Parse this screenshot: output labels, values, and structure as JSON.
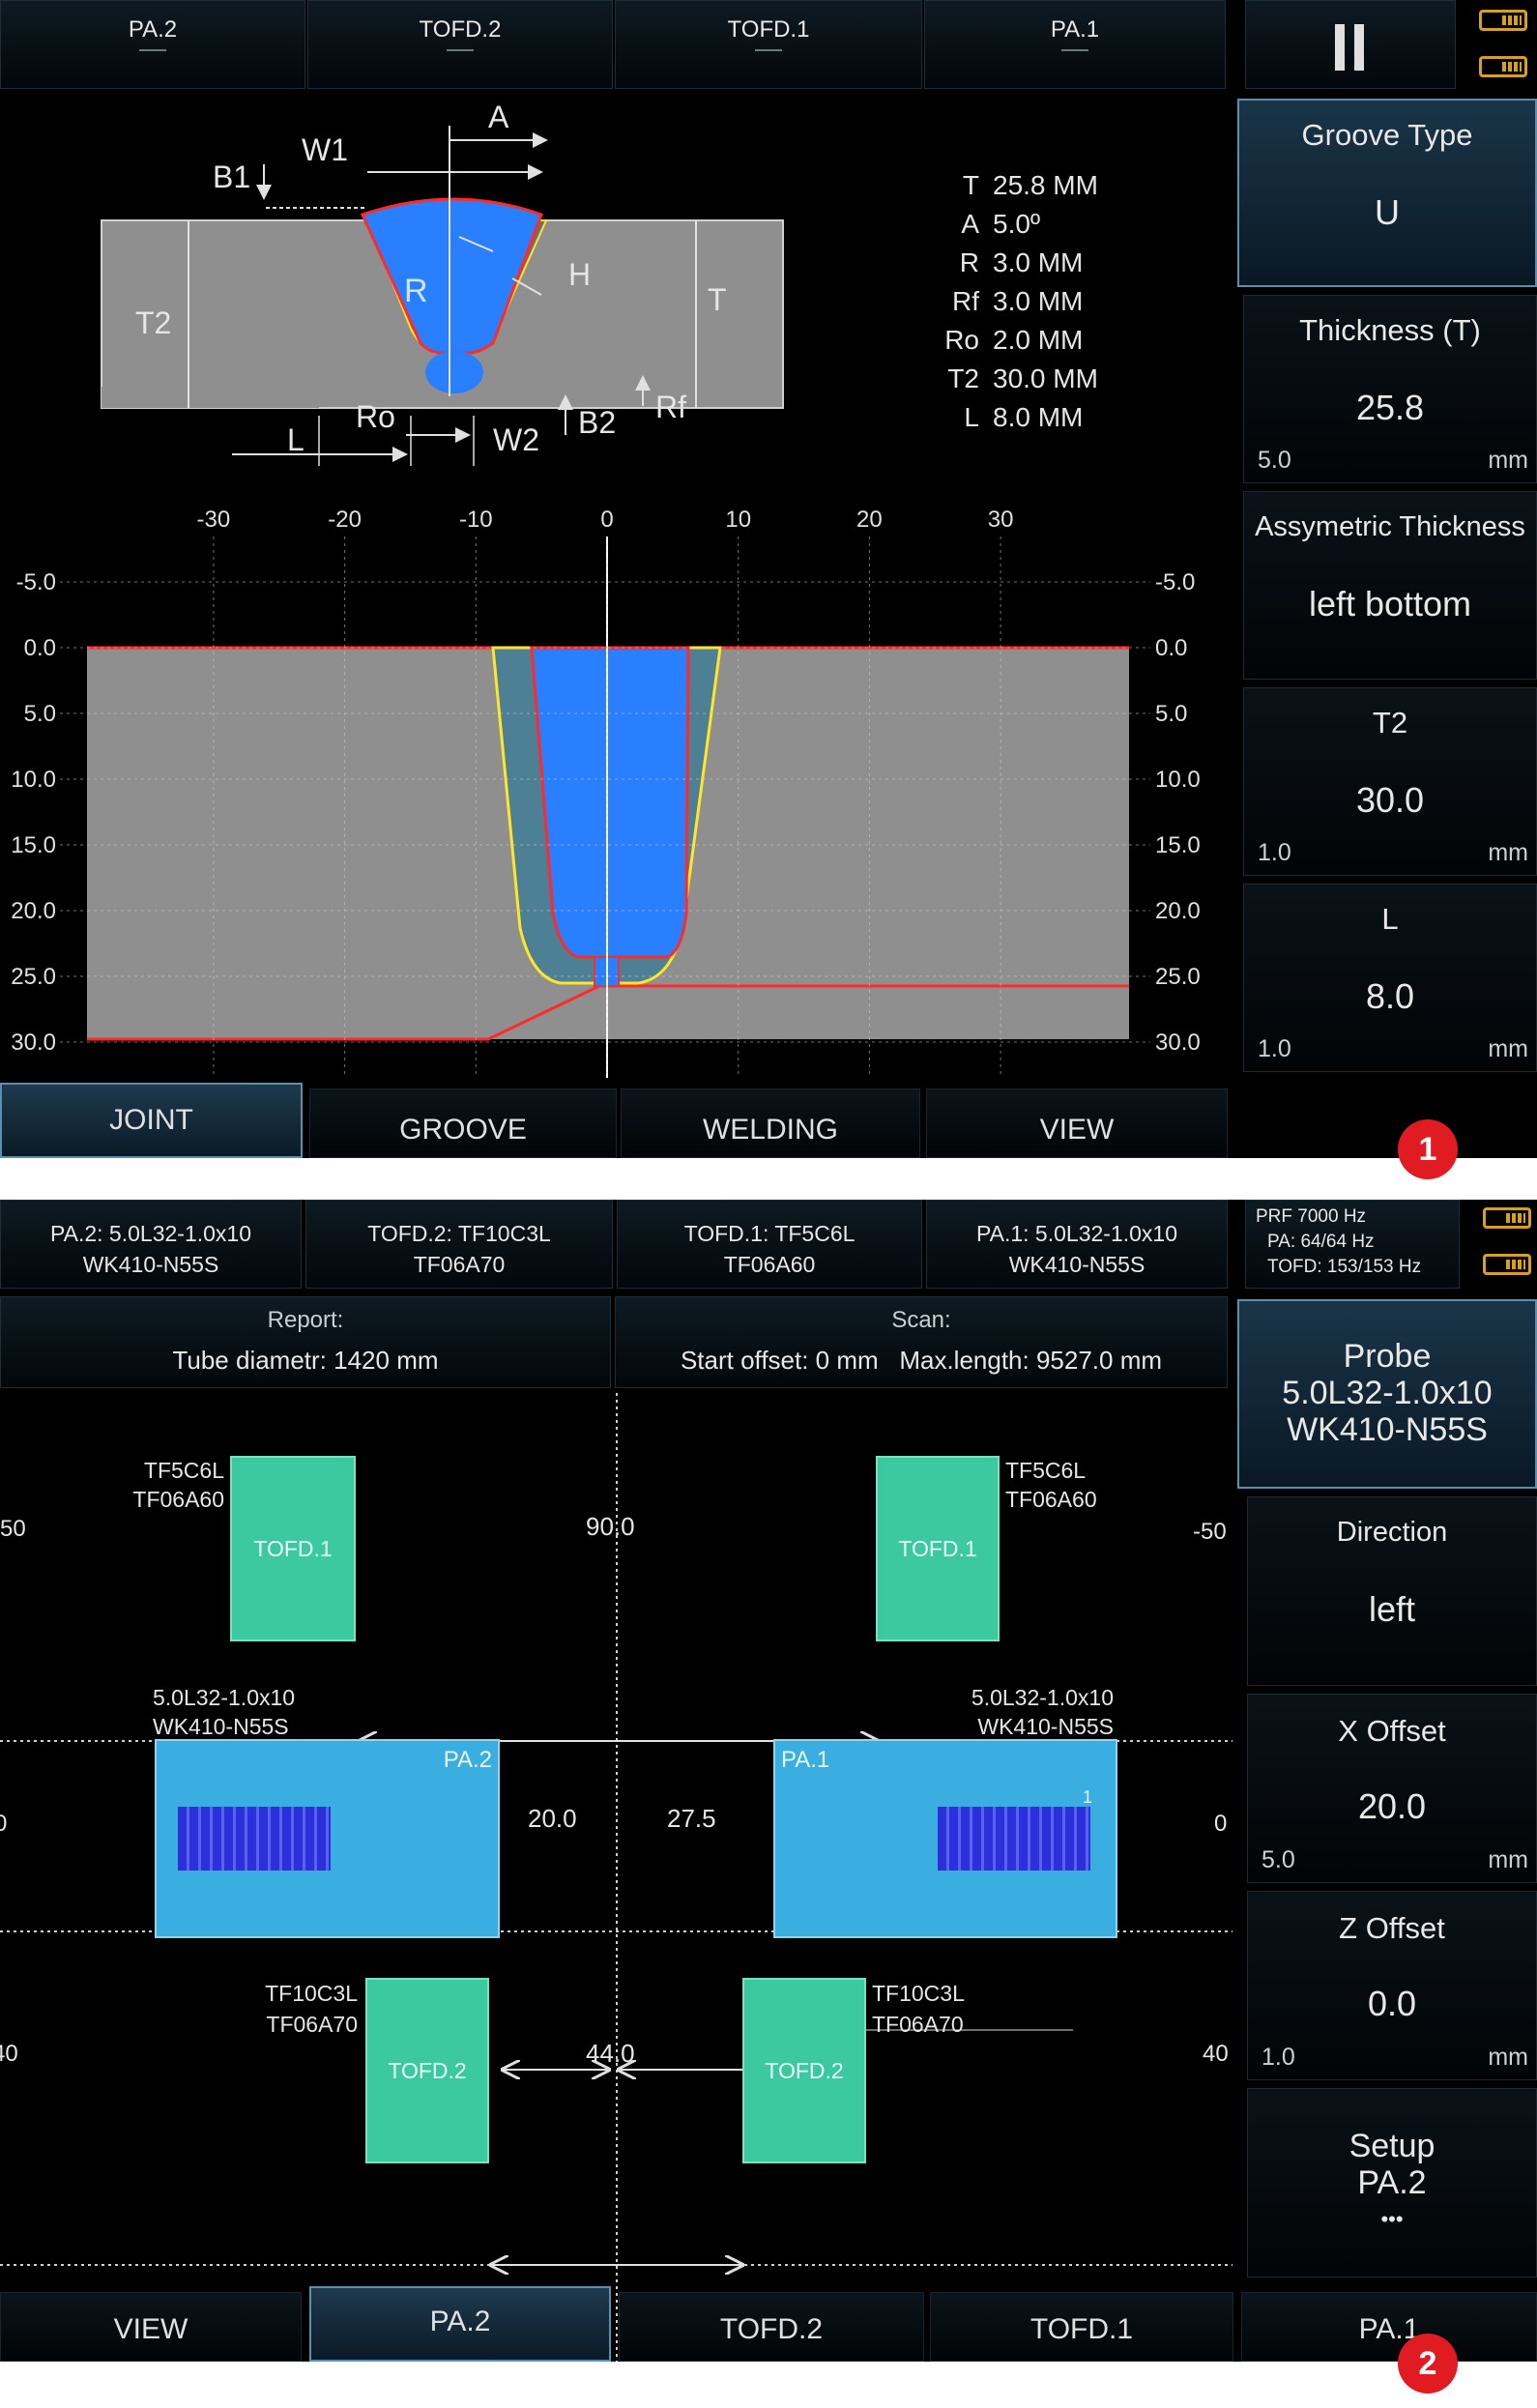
{
  "panel1": {
    "top_tabs": [
      "PA.2",
      "TOFD.2",
      "TOFD.1",
      "PA.1"
    ],
    "pause_icon": "pause-icon",
    "sidebar": [
      {
        "title": "Groove Type",
        "value": "U",
        "min": "",
        "unit": "",
        "active": true
      },
      {
        "title": "Thickness (T)",
        "value": "25.8",
        "min": "5.0",
        "unit": "mm"
      },
      {
        "title": "Assymetric Thickness",
        "value": "left bottom",
        "min": "",
        "unit": ""
      },
      {
        "title": "T2",
        "value": "30.0",
        "min": "1.0",
        "unit": "mm"
      },
      {
        "title": "L",
        "value": "8.0",
        "min": "1.0",
        "unit": "mm"
      }
    ],
    "diagram_labels": {
      "A": "A",
      "W1": "W1",
      "B1": "B1",
      "R": "R",
      "H": "H",
      "T2": "T2",
      "T": "T",
      "Ro": "Ro",
      "L": "L",
      "W2": "W2",
      "B2": "B2",
      "Rf": "Rf"
    },
    "params": [
      {
        "name": "T",
        "value": "25.8 MM"
      },
      {
        "name": "A",
        "value": "5.0º"
      },
      {
        "name": "R",
        "value": "3.0 MM"
      },
      {
        "name": "Rf",
        "value": "3.0 MM"
      },
      {
        "name": "Ro",
        "value": "2.0 MM"
      },
      {
        "name": "T2",
        "value": "30.0 MM"
      },
      {
        "name": "L",
        "value": "8.0 MM"
      }
    ],
    "x_ticks": [
      "-30",
      "-20",
      "-10",
      "0",
      "10",
      "20",
      "30"
    ],
    "y_ticks": [
      "-5.0",
      "0.0",
      "5.0",
      "10.0",
      "15.0",
      "20.0",
      "25.0",
      "30.0"
    ],
    "bottom_tabs": [
      "JOINT",
      "GROOVE",
      "WELDING",
      "VIEW"
    ],
    "active_tab": "JOINT",
    "marker": "1"
  },
  "panel2": {
    "top_tabs": [
      {
        "line1": "PA.2: 5.0L32-1.0x10",
        "line2": "WK410-N55S"
      },
      {
        "line1": "TOFD.2: TF10C3L",
        "line2": "TF06A70"
      },
      {
        "line1": "TOFD.1: TF5C6L",
        "line2": "TF06A60"
      },
      {
        "line1": "PA.1: 5.0L32-1.0x10",
        "line2": "WK410-N55S"
      }
    ],
    "prf": {
      "line1": "PRF 7000 Hz",
      "line2": "PA: 64/64 Hz",
      "line3": "TOFD: 153/153 Hz"
    },
    "report": {
      "title": "Report:",
      "value": "Tube diametr: 1420 mm"
    },
    "scan": {
      "title": "Scan:",
      "value": "Start offset: 0 mm   Max.length: 9527.0 mm"
    },
    "sidebar": [
      {
        "title": "Probe",
        "value": "5.0L32-1.0x10",
        "value2": "WK410-N55S",
        "active": true
      },
      {
        "title": "Direction",
        "value": "left",
        "min": "",
        "unit": ""
      },
      {
        "title": "X Offset",
        "value": "20.0",
        "min": "5.0",
        "unit": "mm"
      },
      {
        "title": "Z Offset",
        "value": "0.0",
        "min": "1.0",
        "unit": "mm"
      },
      {
        "title": "Setup",
        "value": "PA.2",
        "dots": "•••"
      }
    ],
    "probes": {
      "tofd1_left": {
        "label": "TOFD.1",
        "name1": "TF5C6L",
        "name2": "TF06A60"
      },
      "tofd1_right": {
        "label": "TOFD.1",
        "name1": "TF5C6L",
        "name2": "TF06A60"
      },
      "pa2": {
        "label": "PA.2",
        "name1": "5.0L32-1.0x10",
        "name2": "WK410-N55S"
      },
      "pa1": {
        "label": "PA.1",
        "name1": "5.0L32-1.0x10",
        "name2": "WK410-N55S",
        "small": "1"
      },
      "tofd2_left": {
        "label": "TOFD.2",
        "name1": "TF10C3L",
        "name2": "TF06A70"
      },
      "tofd2_right": {
        "label": "TOFD.2",
        "name1": "TF10C3L",
        "name2": "TF06A70"
      }
    },
    "distances": {
      "tofd1": "90.0",
      "pa_left": "20.0",
      "pa_right": "27.5",
      "tofd2": "44.0"
    },
    "edge_values": {
      "row1_left": "50",
      "row1_right": "-50",
      "row2_left": "0",
      "row2_right": "0",
      "row3_left": "40",
      "row3_right": "40"
    },
    "bottom_tabs": [
      "VIEW",
      "PA.2",
      "TOFD.2",
      "TOFD.1",
      "PA.1"
    ],
    "active_tab": "PA.2",
    "marker": "2"
  },
  "colors": {
    "weld_blue": "#2a7fff",
    "haz": "#4d7f95",
    "fusion_line": "#ffe628",
    "outline_red": "#ff2a2a",
    "plate_gray": "#8f8f8f",
    "tofd_green": "#3cc9a0",
    "pa_blue": "#3aaee0"
  }
}
